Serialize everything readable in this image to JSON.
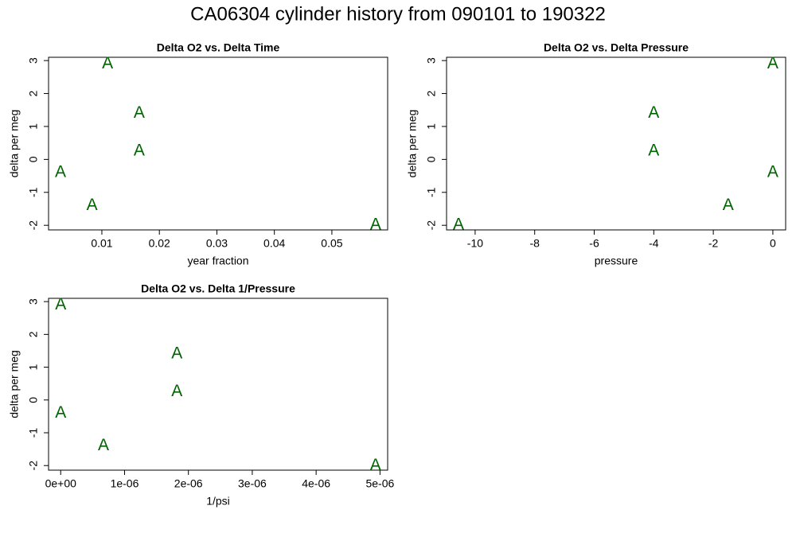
{
  "title": "CA06304   cylinder history from  090101  to  190322",
  "chart_data": [
    {
      "type": "scatter",
      "title": "Delta O2 vs. Delta Time",
      "xlabel": "year fraction",
      "ylabel": "delta per meg",
      "marker": "A",
      "color": "#006400",
      "x": [
        0.011,
        0.0165,
        0.0165,
        0.0028,
        0.0083,
        0.0576
      ],
      "values": [
        2.9,
        1.4,
        0.25,
        -0.4,
        -1.4,
        -2.0
      ],
      "xlim": [
        0.00073,
        0.0597
      ],
      "xticks": [
        0.01,
        0.02,
        0.03,
        0.04,
        0.05
      ],
      "ylim": [
        -2.14,
        3.1
      ],
      "yticks": [
        -2,
        -1,
        0,
        1,
        2,
        3
      ]
    },
    {
      "type": "scatter",
      "title": "Delta O2 vs. Delta Pressure",
      "xlabel": "pressure",
      "ylabel": "delta per meg",
      "marker": "A",
      "color": "#006400",
      "x": [
        0,
        -4.0,
        -4.0,
        0,
        -1.5,
        -10.56
      ],
      "values": [
        2.9,
        1.4,
        0.25,
        -0.4,
        -1.4,
        -2.0
      ],
      "xlim": [
        -10.96,
        0.43
      ],
      "xticks": [
        -10,
        -8,
        -6,
        -4,
        -2,
        0
      ],
      "ylim": [
        -2.14,
        3.1
      ],
      "yticks": [
        -2,
        -1,
        0,
        1,
        2,
        3
      ]
    },
    {
      "type": "scatter",
      "title": "Delta O2 vs. Delta 1/Pressure",
      "xlabel": "1/psi",
      "ylabel": "delta per meg",
      "marker": "A",
      "color": "#006400",
      "x": [
        0,
        1.82e-06,
        1.82e-06,
        0,
        6.7e-07,
        4.93e-06
      ],
      "values": [
        2.9,
        1.4,
        0.25,
        -0.4,
        -1.4,
        -2.0
      ],
      "xlim": [
        -1.9e-07,
        5.12e-06
      ],
      "xticks": [
        {
          "value": 0,
          "label": "0e+00"
        },
        {
          "value": 1e-06,
          "label": "1e-06"
        },
        {
          "value": 2e-06,
          "label": "2e-06"
        },
        {
          "value": 3e-06,
          "label": "3e-06"
        },
        {
          "value": 4e-06,
          "label": "4e-06"
        },
        {
          "value": 5e-06,
          "label": "5e-06"
        }
      ],
      "ylim": [
        -2.14,
        3.1
      ],
      "yticks": [
        -2,
        -1,
        0,
        1,
        2,
        3
      ]
    }
  ]
}
